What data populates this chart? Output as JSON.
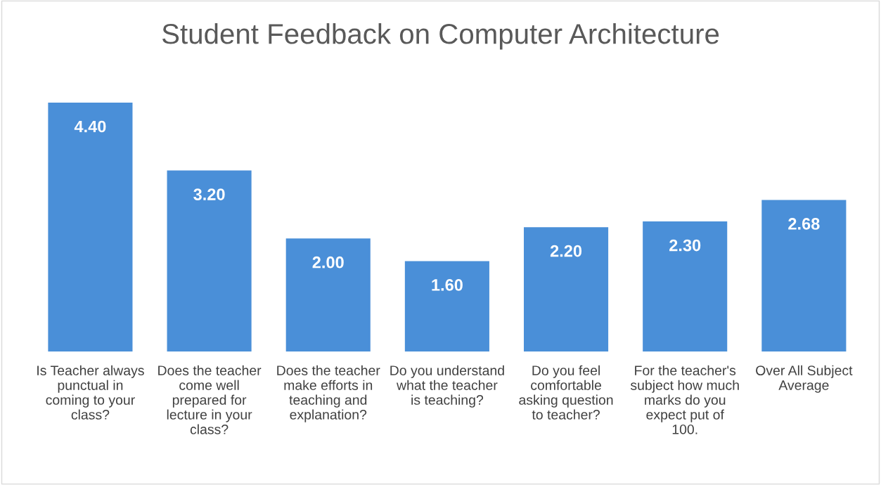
{
  "chart_data": {
    "type": "bar",
    "title": "Student Feedback on Computer Architecture",
    "categories": [
      "Is Teacher always punctual in coming to your class?",
      "Does the teacher come well prepared for lecture in your class?",
      "Does the teacher make efforts in teaching and explanation?",
      "Do you understand what the teacher is teaching?",
      "Do you feel comfortable asking question to teacher?",
      "For the teacher's subject how much marks do you expect put of 100.",
      "Over All Subject Average"
    ],
    "values": [
      4.4,
      3.2,
      2.0,
      1.6,
      2.2,
      2.3,
      2.68
    ],
    "value_labels": [
      "4.40",
      "3.20",
      "2.00",
      "1.60",
      "2.20",
      "2.30",
      "2.68"
    ],
    "color": "#4a8fd8",
    "grid": false,
    "legend": false
  }
}
